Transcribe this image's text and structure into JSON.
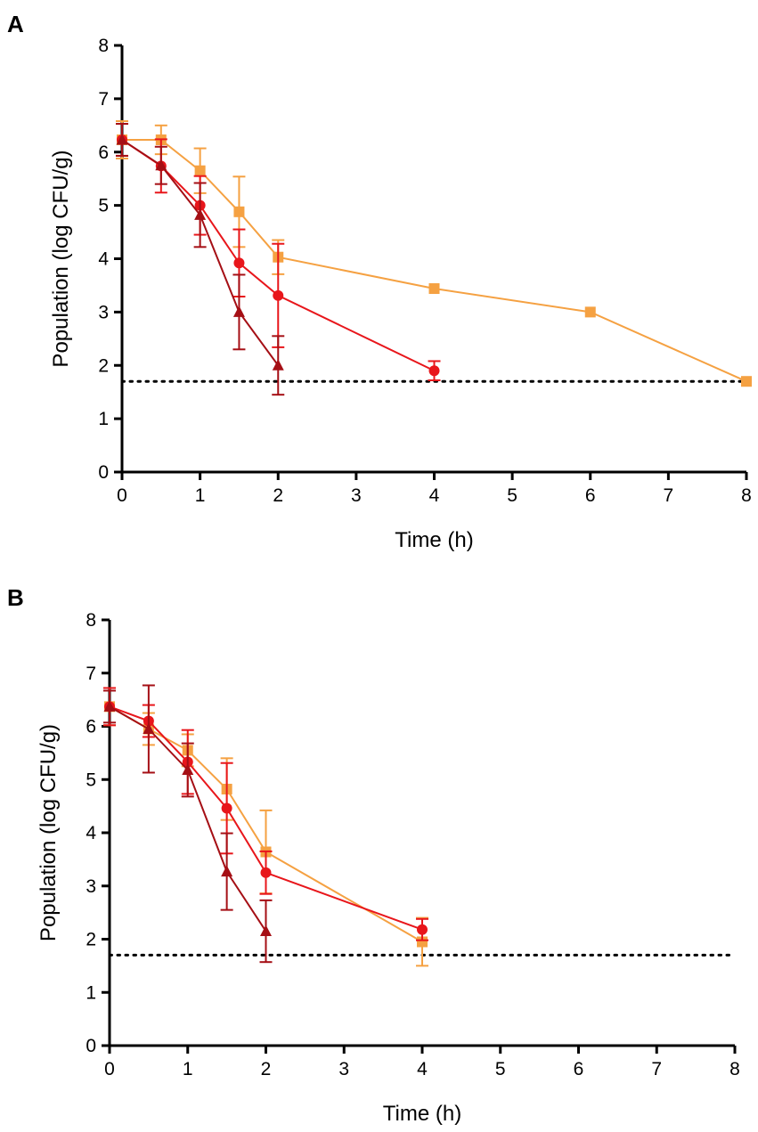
{
  "chart_data": [
    {
      "type": "line",
      "panel": "A",
      "xlabel": "Time (h)",
      "ylabel": "Population (log CFU/g)",
      "xlim": [
        0,
        8
      ],
      "ylim": [
        0,
        8
      ],
      "xticks": [
        "0",
        "1",
        "2",
        "3",
        "4",
        "5",
        "6",
        "7",
        "8"
      ],
      "yticks": [
        "0",
        "1",
        "2",
        "3",
        "4",
        "5",
        "6",
        "7",
        "8"
      ],
      "detection_limit": 1.7,
      "series": [
        {
          "name": "orange-squares",
          "marker": "square",
          "color": "#F5A142",
          "x": [
            0,
            0.5,
            1,
            1.5,
            2,
            4,
            6,
            8
          ],
          "y": [
            6.23,
            6.23,
            5.65,
            4.88,
            4.03,
            3.44,
            3.0,
            1.7
          ],
          "err": [
            0.35,
            0.27,
            0.42,
            0.66,
            0.32,
            0.0,
            0.0,
            0.0
          ]
        },
        {
          "name": "red-circles",
          "marker": "circle",
          "color": "#E8161B",
          "x": [
            0,
            0.5,
            1,
            1.5,
            2,
            4
          ],
          "y": [
            6.23,
            5.74,
            5.0,
            3.92,
            3.31,
            1.9
          ],
          "err": [
            0.3,
            0.5,
            0.55,
            0.63,
            0.97,
            0.18
          ]
        },
        {
          "name": "darkred-triangles",
          "marker": "triangle",
          "color": "#A50F15",
          "x": [
            0,
            0.5,
            1,
            1.5,
            2
          ],
          "y": [
            6.23,
            5.75,
            4.82,
            3.0,
            2.0
          ],
          "err": [
            0.3,
            0.35,
            0.6,
            0.7,
            0.55
          ]
        }
      ]
    },
    {
      "type": "line",
      "panel": "B",
      "xlabel": "Time (h)",
      "ylabel": "Population (log CFU/g)",
      "xlim": [
        0,
        8
      ],
      "ylim": [
        0,
        8
      ],
      "xticks": [
        "0",
        "1",
        "2",
        "3",
        "4",
        "5",
        "6",
        "7",
        "8"
      ],
      "yticks": [
        "0",
        "1",
        "2",
        "3",
        "4",
        "5",
        "6",
        "7",
        "8"
      ],
      "detection_limit": 1.7,
      "series": [
        {
          "name": "orange-squares",
          "marker": "square",
          "color": "#F5A142",
          "x": [
            0,
            0.5,
            1,
            1.5,
            2,
            4
          ],
          "y": [
            6.37,
            5.95,
            5.55,
            4.82,
            3.64,
            1.95
          ],
          "err": [
            0.35,
            0.3,
            0.3,
            0.58,
            0.78,
            0.45
          ]
        },
        {
          "name": "red-circles",
          "marker": "circle",
          "color": "#E8161B",
          "x": [
            0,
            0.5,
            1,
            1.5,
            2,
            4
          ],
          "y": [
            6.37,
            6.1,
            5.33,
            4.46,
            3.25,
            2.18
          ],
          "err": [
            0.35,
            0.3,
            0.6,
            0.85,
            0.4,
            0.2
          ]
        },
        {
          "name": "darkred-triangles",
          "marker": "triangle",
          "color": "#A50F15",
          "x": [
            0,
            0.5,
            1,
            1.5,
            2
          ],
          "y": [
            6.37,
            5.95,
            5.18,
            3.27,
            2.15
          ],
          "err": [
            0.3,
            0.82,
            0.5,
            0.72,
            0.58
          ]
        }
      ]
    }
  ]
}
